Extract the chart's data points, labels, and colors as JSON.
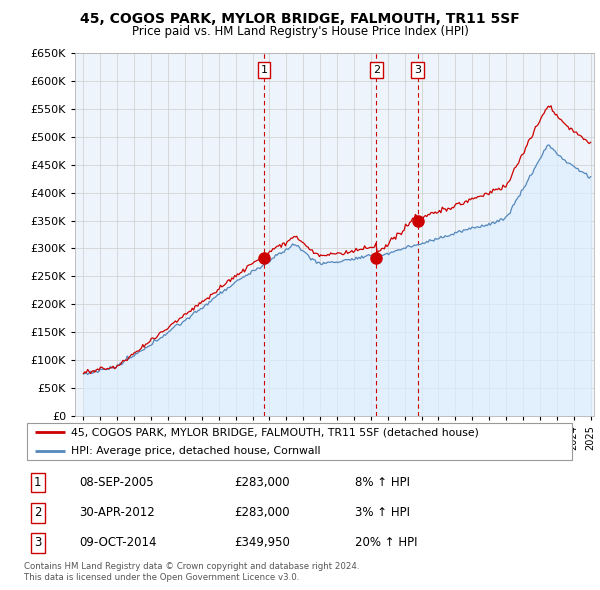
{
  "title": "45, COGOS PARK, MYLOR BRIDGE, FALMOUTH, TR11 5SF",
  "subtitle": "Price paid vs. HM Land Registry's House Price Index (HPI)",
  "legend_line1": "45, COGOS PARK, MYLOR BRIDGE, FALMOUTH, TR11 5SF (detached house)",
  "legend_line2": "HPI: Average price, detached house, Cornwall",
  "footer1": "Contains HM Land Registry data © Crown copyright and database right 2024.",
  "footer2": "This data is licensed under the Open Government Licence v3.0.",
  "transactions": [
    {
      "label": "1",
      "date_str": "08-SEP-2005",
      "price_str": "£283,000",
      "hpi_str": "8% ↑ HPI",
      "year": 2005.69,
      "price": 283000
    },
    {
      "label": "2",
      "date_str": "30-APR-2012",
      "price_str": "£283,000",
      "hpi_str": "3% ↑ HPI",
      "year": 2012.33,
      "price": 283000
    },
    {
      "label": "3",
      "date_str": "09-OCT-2014",
      "price_str": "£349,950",
      "hpi_str": "20% ↑ HPI",
      "year": 2014.77,
      "price": 349950
    }
  ],
  "red_line_color": "#cc0000",
  "blue_line_color": "#5588bb",
  "blue_fill_color": "#ddeeff",
  "vline_color": "#cc0000",
  "background_color": "#ffffff",
  "grid_color": "#cccccc",
  "ylim": [
    0,
    650000
  ],
  "yticks": [
    0,
    50000,
    100000,
    150000,
    200000,
    250000,
    300000,
    350000,
    400000,
    450000,
    500000,
    550000,
    600000,
    650000
  ],
  "xlim_left": 1994.5,
  "xlim_right": 2025.2
}
